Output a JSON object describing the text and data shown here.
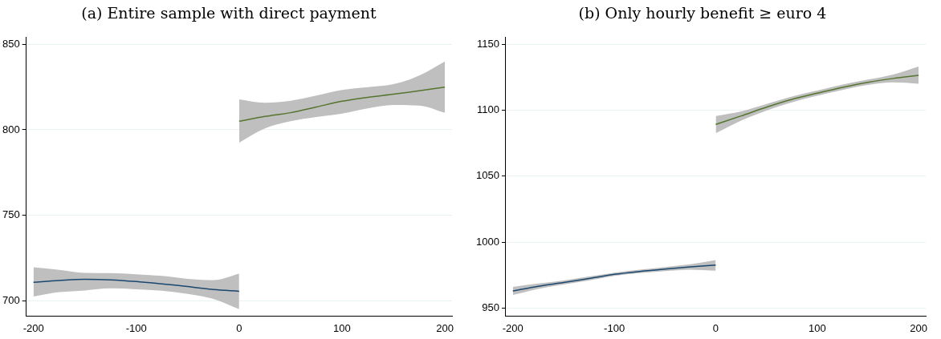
{
  "chart_data": [
    {
      "type": "line",
      "title": "(a) Entire sample with direct payment",
      "xlim": [
        -207,
        207
      ],
      "xticks": [
        -200,
        -100,
        0,
        100,
        200
      ],
      "ylim": [
        691,
        854
      ],
      "yticks": [
        700,
        750,
        800,
        850
      ],
      "grid": "y",
      "legend": false,
      "marker": "none",
      "series": [
        {
          "color": "#1a476f",
          "x": [
            -200,
            -175,
            -150,
            -125,
            -100,
            -75,
            -50,
            -25,
            0
          ],
          "values": [
            710.8,
            711.8,
            712.5,
            712.2,
            711.2,
            709.8,
            708.3,
            706.5,
            705.5
          ],
          "lower": [
            702.5,
            705,
            706,
            707.2,
            706.7,
            705.8,
            704,
            701,
            695
          ],
          "upper": [
            719.5,
            718,
            716.3,
            716.2,
            715.5,
            714.5,
            712.8,
            712,
            715.8
          ]
        },
        {
          "color": "#55752f",
          "x": [
            0,
            25,
            50,
            75,
            100,
            125,
            150,
            175,
            200
          ],
          "values": [
            805,
            807.8,
            810,
            813.3,
            816.7,
            819,
            820.8,
            822.8,
            825
          ],
          "lower": [
            792.5,
            800.8,
            805,
            807.5,
            809.5,
            812.5,
            814.5,
            814.2,
            810
          ],
          "upper": [
            817.8,
            815.8,
            817,
            820,
            823.3,
            825,
            826.7,
            831.7,
            840
          ]
        }
      ]
    },
    {
      "type": "line",
      "title": "(b) Only hourly benefit ≥ euro 4",
      "xlim": [
        -207,
        207
      ],
      "xticks": [
        -200,
        -100,
        0,
        100,
        200
      ],
      "ylim": [
        944,
        1155
      ],
      "yticks": [
        950,
        1000,
        1050,
        1100,
        1150
      ],
      "grid": "y",
      "legend": false,
      "marker": "none",
      "series": [
        {
          "color": "#1a476f",
          "x": [
            -200,
            -175,
            -150,
            -125,
            -100,
            -75,
            -50,
            -25,
            0
          ],
          "values": [
            963,
            966.6,
            969.4,
            972.5,
            975.6,
            977.8,
            979.6,
            981.2,
            982.7
          ],
          "lower": [
            960,
            964.6,
            967.9,
            971,
            974.4,
            976.5,
            978.1,
            979.2,
            978.4
          ],
          "upper": [
            966.1,
            968.6,
            970.9,
            974,
            976.8,
            979.1,
            981.1,
            983.2,
            986.4
          ]
        },
        {
          "color": "#55752f",
          "x": [
            0,
            25,
            50,
            75,
            100,
            125,
            150,
            175,
            200
          ],
          "values": [
            1089.2,
            1095.6,
            1102.2,
            1108.1,
            1112.8,
            1117.3,
            1121.1,
            1124,
            1126.3
          ],
          "lower": [
            1082.5,
            1092.1,
            1099.7,
            1105.9,
            1110.8,
            1115.3,
            1119.1,
            1121,
            1120
          ],
          "upper": [
            1095.6,
            1099.1,
            1104.7,
            1110.3,
            1114.8,
            1119.3,
            1123.1,
            1127,
            1133
          ]
        }
      ]
    }
  ]
}
